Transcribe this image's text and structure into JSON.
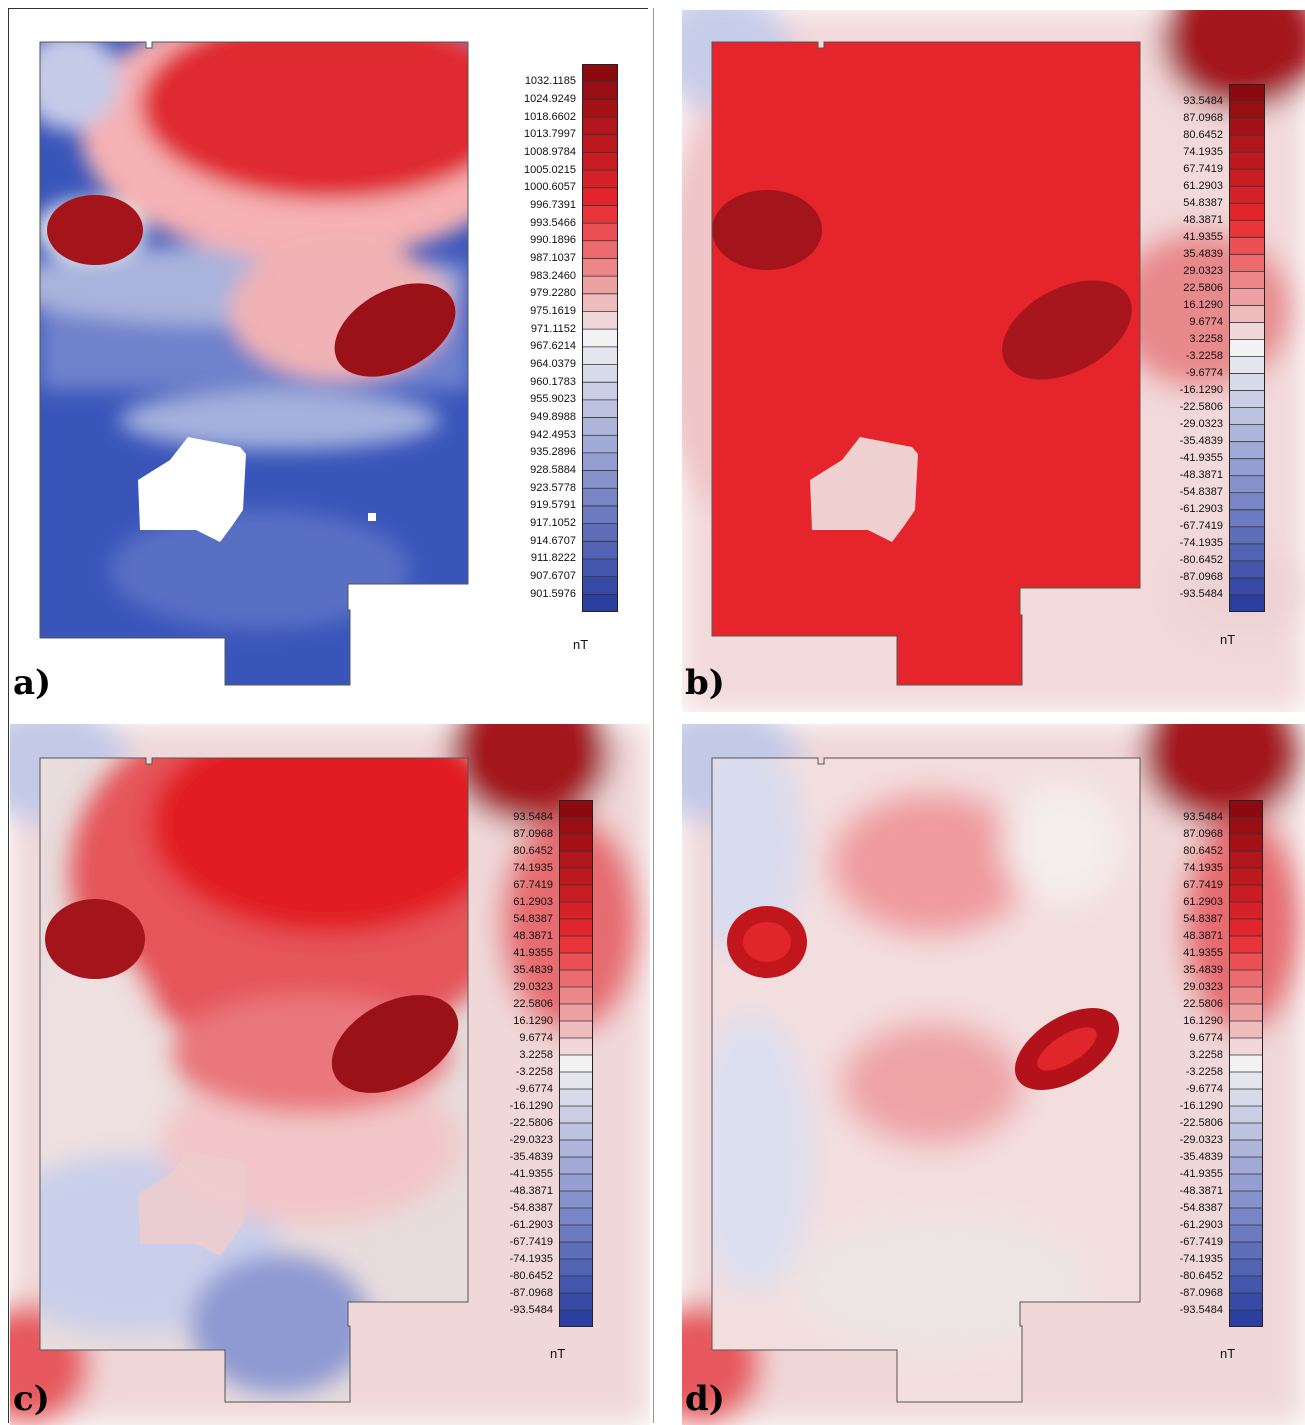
{
  "panels": [
    {
      "id": "a",
      "label": "a)",
      "unit": "nT",
      "scale": [
        "1032.1185",
        "1024.9249",
        "1018.6602",
        "1013.7997",
        "1008.9784",
        "1005.0215",
        "1000.6057",
        "996.7391",
        "993.5466",
        "990.1896",
        "987.1037",
        "983.2460",
        "979.2280",
        "975.1619",
        "971.1152",
        "967.6214",
        "964.0379",
        "960.1783",
        "955.9023",
        "949.8988",
        "942.4953",
        "935.2896",
        "928.5884",
        "923.5778",
        "919.5791",
        "917.1052",
        "914.6707",
        "911.8222",
        "907.6707",
        "901.5976"
      ]
    },
    {
      "id": "b",
      "label": "b)",
      "unit": "nT",
      "scale": [
        "93.5484",
        "87.0968",
        "80.6452",
        "74.1935",
        "67.7419",
        "61.2903",
        "54.8387",
        "48.3871",
        "41.9355",
        "35.4839",
        "29.0323",
        "22.5806",
        "16.1290",
        "9.6774",
        "3.2258",
        "-3.2258",
        "-9.6774",
        "-16.1290",
        "-22.5806",
        "-29.0323",
        "-35.4839",
        "-41.9355",
        "-48.3871",
        "-54.8387",
        "-61.2903",
        "-67.7419",
        "-74.1935",
        "-80.6452",
        "-87.0968",
        "-93.5484"
      ]
    },
    {
      "id": "c",
      "label": "c)",
      "unit": "nT",
      "scale": [
        "93.5484",
        "87.0968",
        "80.6452",
        "74.1935",
        "67.7419",
        "61.2903",
        "54.8387",
        "48.3871",
        "41.9355",
        "35.4839",
        "29.0323",
        "22.5806",
        "16.1290",
        "9.6774",
        "3.2258",
        "-3.2258",
        "-9.6774",
        "-16.1290",
        "-22.5806",
        "-29.0323",
        "-35.4839",
        "-41.9355",
        "-48.3871",
        "-54.8387",
        "-61.2903",
        "-67.7419",
        "-74.1935",
        "-80.6452",
        "-87.0968",
        "-93.5484"
      ]
    },
    {
      "id": "d",
      "label": "d)",
      "unit": "nT",
      "scale": [
        "93.5484",
        "87.0968",
        "80.6452",
        "74.1935",
        "67.7419",
        "61.2903",
        "54.8387",
        "48.3871",
        "41.9355",
        "35.4839",
        "29.0323",
        "22.5806",
        "16.1290",
        "9.6774",
        "3.2258",
        "-3.2258",
        "-9.6774",
        "-16.1290",
        "-22.5806",
        "-29.0323",
        "-35.4839",
        "-41.9355",
        "-48.3871",
        "-54.8387",
        "-61.2903",
        "-67.7419",
        "-74.1935",
        "-80.6452",
        "-87.0968",
        "-93.5484"
      ]
    }
  ],
  "colors": {
    "high": "#8b0a10",
    "mid_high": "#e8272d",
    "neutral": "#f2f2f2",
    "mid_low": "#8d98cf",
    "low": "#2a3fa0"
  }
}
